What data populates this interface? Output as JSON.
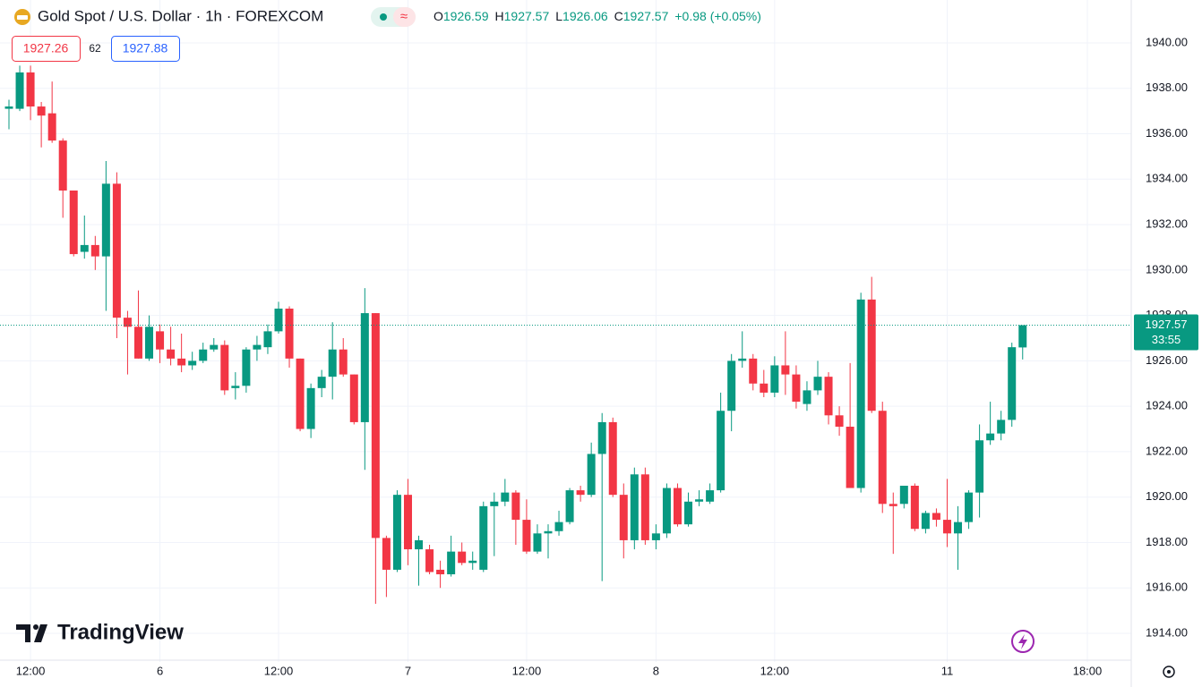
{
  "header": {
    "symbol": "Gold Spot / U.S. Dollar · 1h · FOREXCOM",
    "o_label": "O",
    "open": "1926.59",
    "h_label": "H",
    "high": "1927.57",
    "l_label": "L",
    "low": "1926.06",
    "c_label": "C",
    "close": "1927.57",
    "change": "+0.98 (+0.05%)",
    "bid": "1927.26",
    "spread": "62",
    "ask": "1927.88",
    "countdown": "33:55",
    "brand": "TradingView"
  },
  "chart_data": {
    "type": "candlestick",
    "categories": [
      null,
      null,
      "12:00",
      null,
      null,
      null,
      null,
      null,
      null,
      null,
      null,
      null,
      null,
      null,
      "6",
      null,
      null,
      null,
      null,
      null,
      null,
      null,
      null,
      null,
      null,
      "12:00",
      null,
      null,
      null,
      null,
      null,
      null,
      null,
      null,
      null,
      null,
      null,
      "7",
      null,
      null,
      null,
      null,
      null,
      null,
      null,
      null,
      null,
      null,
      "12:00",
      null,
      null,
      null,
      null,
      null,
      null,
      null,
      null,
      null,
      null,
      null,
      "8",
      null,
      null,
      null,
      null,
      null,
      null,
      null,
      null,
      null,
      null,
      "12:00",
      null,
      null,
      null,
      null,
      null,
      null,
      null,
      null,
      null,
      null,
      null,
      null,
      null,
      null,
      null,
      "11",
      null,
      null,
      null,
      null,
      null,
      null,
      null,
      null,
      null,
      null,
      null,
      null,
      "18:00"
    ],
    "open": [
      1937.1,
      1937.1,
      1938.7,
      1937.2,
      1936.9,
      1935.7,
      1933.5,
      1930.8,
      1931.1,
      1930.6,
      1933.8,
      1927.9,
      1927.5,
      1926.1,
      1927.3,
      1926.5,
      1926.1,
      1925.8,
      1926.0,
      1926.5,
      1926.7,
      1924.8,
      1924.9,
      1926.5,
      1926.6,
      1927.3,
      1928.3,
      1926.1,
      1923.0,
      1924.8,
      1925.3,
      1926.5,
      1925.4,
      1923.3,
      1928.1,
      1918.2,
      1916.8,
      1920.1,
      1917.7,
      1917.7,
      1916.8,
      1916.6,
      1917.6,
      1917.1,
      1916.8,
      1919.6,
      1919.8,
      1920.2,
      1919.0,
      1917.6,
      1918.4,
      1918.5,
      1918.9,
      1920.3,
      1920.1,
      1921.9,
      1923.3,
      1920.1,
      1918.1,
      1921.0,
      1918.1,
      1918.4,
      1920.4,
      1918.8,
      1919.8,
      1919.8,
      1920.3,
      1923.8,
      1926.0,
      1926.1,
      1925.0,
      1924.6,
      1925.8,
      1925.4,
      1924.1,
      1924.7,
      1925.3,
      1923.6,
      1923.1,
      1920.4,
      1928.7,
      1923.8,
      1919.7,
      1919.7,
      1920.5,
      1918.6,
      1919.3,
      1919.0,
      1918.4,
      1918.9,
      1920.2,
      1922.5,
      1922.8,
      1923.4,
      1926.59,
      null,
      null,
      null,
      null,
      null,
      null
    ],
    "high": [
      1937.5,
      1939.0,
      1939.0,
      1937.4,
      1938.3,
      1935.8,
      1933.5,
      1932.4,
      1931.5,
      1934.8,
      1934.3,
      1928.2,
      1929.1,
      1928.0,
      1927.6,
      1927.5,
      1927.2,
      1926.4,
      1926.8,
      1927.0,
      1926.9,
      1925.5,
      1926.6,
      1927.1,
      1927.6,
      1928.6,
      1928.4,
      1926.1,
      1925.0,
      1925.6,
      1927.7,
      1927.0,
      1925.4,
      1929.2,
      1928.1,
      1918.3,
      1920.3,
      1920.8,
      1918.3,
      1917.9,
      1917.2,
      1918.3,
      1918.0,
      1917.6,
      1919.8,
      1920.2,
      1920.8,
      1920.3,
      1919.9,
      1918.8,
      1918.8,
      1919.4,
      1920.4,
      1920.5,
      1922.4,
      1923.7,
      1923.5,
      1920.6,
      1921.3,
      1921.3,
      1918.8,
      1920.6,
      1920.6,
      1920.2,
      1920.3,
      1920.6,
      1924.6,
      1926.3,
      1927.3,
      1926.3,
      1925.6,
      1926.2,
      1927.3,
      1925.8,
      1925.1,
      1926.0,
      1925.5,
      1924.0,
      1925.9,
      1929.0,
      1929.7,
      1924.2,
      1920.2,
      1920.5,
      1920.6,
      1919.4,
      1919.5,
      1920.8,
      1919.6,
      1920.3,
      1923.2,
      1924.2,
      1923.8,
      1926.8,
      1927.57,
      null,
      null,
      null,
      null,
      null,
      null
    ],
    "low": [
      1936.2,
      1937.0,
      1936.6,
      1935.4,
      1935.6,
      1932.3,
      1930.6,
      1930.5,
      1930.0,
      1928.2,
      1927.0,
      1925.4,
      1926.1,
      1926.0,
      1925.9,
      1925.8,
      1925.5,
      1925.6,
      1925.9,
      1926.4,
      1924.5,
      1924.3,
      1924.6,
      1926.0,
      1926.3,
      1927.2,
      1925.7,
      1922.9,
      1922.6,
      1924.4,
      1924.3,
      1925.3,
      1923.2,
      1921.2,
      1915.3,
      1915.6,
      1916.7,
      1917.0,
      1916.1,
      1916.6,
      1916.0,
      1916.5,
      1917.0,
      1916.8,
      1916.7,
      1917.4,
      1919.6,
      1917.9,
      1917.5,
      1917.5,
      1917.3,
      1918.3,
      1918.8,
      1919.8,
      1920.0,
      1916.3,
      1920.0,
      1917.3,
      1917.7,
      1917.9,
      1917.7,
      1918.2,
      1918.7,
      1918.7,
      1919.6,
      1919.7,
      1920.2,
      1922.9,
      1925.7,
      1924.7,
      1924.4,
      1924.4,
      1924.5,
      1923.9,
      1923.8,
      1924.5,
      1923.2,
      1922.7,
      1920.4,
      1920.2,
      1923.7,
      1919.3,
      1917.5,
      1919.5,
      1918.5,
      1918.4,
      1918.7,
      1917.8,
      1916.8,
      1918.6,
      1919.1,
      1922.3,
      1922.5,
      1923.1,
      1926.06,
      null,
      null,
      null,
      null,
      null,
      null
    ],
    "close": [
      1937.2,
      1938.7,
      1937.2,
      1936.8,
      1935.7,
      1933.5,
      1930.7,
      1931.1,
      1930.6,
      1933.8,
      1927.9,
      1927.5,
      1926.1,
      1927.5,
      1926.5,
      1926.1,
      1925.8,
      1926.0,
      1926.5,
      1926.7,
      1924.7,
      1924.9,
      1926.5,
      1926.7,
      1927.3,
      1928.3,
      1926.1,
      1923.0,
      1924.8,
      1925.3,
      1926.5,
      1925.4,
      1923.3,
      1928.1,
      1918.2,
      1916.8,
      1920.1,
      1917.7,
      1918.1,
      1916.7,
      1916.6,
      1917.6,
      1917.1,
      1917.2,
      1919.6,
      1919.8,
      1920.2,
      1919.0,
      1917.6,
      1918.4,
      1918.5,
      1918.9,
      1920.3,
      1920.1,
      1921.9,
      1923.3,
      1920.1,
      1918.1,
      1921.0,
      1918.1,
      1918.4,
      1920.4,
      1918.8,
      1919.8,
      1919.9,
      1920.3,
      1923.8,
      1926.0,
      1926.1,
      1925.0,
      1924.6,
      1925.8,
      1925.4,
      1924.2,
      1924.7,
      1925.3,
      1923.6,
      1923.1,
      1920.4,
      1928.7,
      1923.8,
      1919.7,
      1919.6,
      1920.5,
      1918.6,
      1919.3,
      1919.0,
      1918.4,
      1918.9,
      1920.2,
      1922.5,
      1922.8,
      1923.4,
      1926.6,
      1927.57,
      null,
      null,
      null,
      null,
      null,
      null
    ],
    "up_color": "#089981",
    "down_color": "#f23645",
    "ylim": [
      1912.74,
      1941.89
    ],
    "yticks": [
      {
        "value": 1914,
        "label": "1914.00"
      },
      {
        "value": 1916,
        "label": "1916.00"
      },
      {
        "value": 1918,
        "label": "1918.00"
      },
      {
        "value": 1920,
        "label": "1920.00"
      },
      {
        "value": 1922,
        "label": "1922.00"
      },
      {
        "value": 1924,
        "label": "1924.00"
      },
      {
        "value": 1926,
        "label": "1926.00"
      },
      {
        "value": 1928,
        "label": "1928.00"
      },
      {
        "value": 1930,
        "label": "1930.00"
      },
      {
        "value": 1932,
        "label": "1932.00"
      },
      {
        "value": 1934,
        "label": "1934.00"
      },
      {
        "value": 1936,
        "label": "1936.00"
      },
      {
        "value": 1938,
        "label": "1938.00"
      },
      {
        "value": 1940,
        "label": "1940.00"
      }
    ],
    "grid": true
  }
}
